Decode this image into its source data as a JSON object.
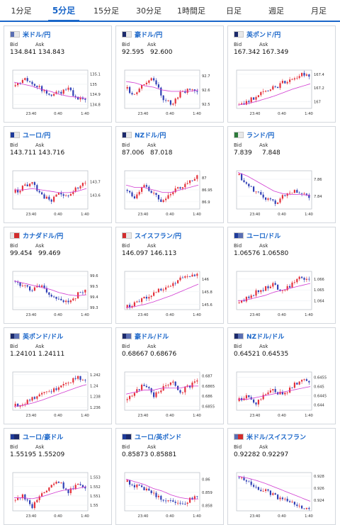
{
  "tabs": [
    {
      "label": "1分足",
      "active": false
    },
    {
      "label": "5分足",
      "active": true
    },
    {
      "label": "15分足",
      "active": false
    },
    {
      "label": "30分足",
      "active": false
    },
    {
      "label": "1時間足",
      "active": false
    },
    {
      "label": "日足",
      "active": false
    },
    {
      "label": "週足",
      "active": false
    },
    {
      "label": "月足",
      "active": false
    }
  ],
  "labels": {
    "bid": "Bid",
    "ask": "Ask"
  },
  "colors": {
    "up": "#e4303a",
    "down": "#2f3fb5",
    "ma": "#d13bd1",
    "accent": "#1a66c9"
  },
  "x_ticks": [
    "23:40",
    "0:40",
    "1:40"
  ],
  "pairs": [
    {
      "name": "米ドル/円",
      "flags": [
        "#5a6fb3",
        "#e8e8e8"
      ],
      "bid": "134.841",
      "ask": "134.843",
      "yticks": [
        "135.1",
        "135",
        "134.9",
        "134.8"
      ],
      "ymin": 134.76,
      "ymax": 135.14,
      "trend": [
        134.98,
        135.06,
        135.02,
        134.95,
        134.88,
        134.92,
        134.95,
        134.86,
        134.84
      ],
      "ma": [
        135.02,
        135.0,
        134.98,
        134.95,
        134.93,
        134.9,
        134.88,
        134.87,
        134.86
      ]
    },
    {
      "name": "豪ドル/円",
      "flags": [
        "#1c2a6b",
        "#e8e8e8"
      ],
      "bid": "92.595",
      "ask": "92.600",
      "yticks": [
        "92.7",
        "92.6",
        "92.5"
      ],
      "ymin": 92.47,
      "ymax": 92.74,
      "trend": [
        92.61,
        92.57,
        92.65,
        92.68,
        92.55,
        92.5,
        92.58,
        92.6,
        92.6
      ],
      "ma": [
        92.66,
        92.65,
        92.63,
        92.62,
        92.6,
        92.59,
        92.59,
        92.59,
        92.6
      ]
    },
    {
      "name": "英ポンド/円",
      "flags": [
        "#1c2a6b",
        "#e8e8e8"
      ],
      "bid": "167.342",
      "ask": "167.349",
      "yticks": [
        "167.4",
        "167.2",
        "167"
      ],
      "ymin": 166.9,
      "ymax": 167.46,
      "trend": [
        166.95,
        167.0,
        167.08,
        167.15,
        167.2,
        167.28,
        167.32,
        167.4,
        167.35
      ],
      "ma": [
        166.95,
        166.97,
        167.0,
        167.04,
        167.08,
        167.13,
        167.18,
        167.22,
        167.26
      ]
    },
    {
      "name": "ユーロ/円",
      "flags": [
        "#1f3b9a",
        "#e8e8e8"
      ],
      "bid": "143.711",
      "ask": "143.716",
      "yticks": [
        "143.7",
        "143.6"
      ],
      "ymin": 143.5,
      "ymax": 143.78,
      "trend": [
        143.62,
        143.66,
        143.7,
        143.6,
        143.56,
        143.62,
        143.6,
        143.66,
        143.71
      ],
      "ma": [
        143.64,
        143.64,
        143.65,
        143.64,
        143.63,
        143.62,
        143.62,
        143.63,
        143.65
      ]
    },
    {
      "name": "NZドル/円",
      "flags": [
        "#1c2a6b",
        "#e8e8e8"
      ],
      "bid": "87.006",
      "ask": "87.018",
      "yticks": [
        "87",
        "86.95",
        "86.9"
      ],
      "ymin": 86.87,
      "ymax": 87.03,
      "trend": [
        86.95,
        86.92,
        86.97,
        86.93,
        86.9,
        86.94,
        86.96,
        86.99,
        87.01
      ],
      "ma": [
        86.97,
        86.96,
        86.96,
        86.95,
        86.94,
        86.94,
        86.95,
        86.96,
        86.97
      ]
    },
    {
      "name": "ランド/円",
      "flags": [
        "#2c7a3a",
        "#e8e8e8"
      ],
      "bid": "7.839",
      "ask": "7.848",
      "yticks": [
        "7.86",
        "7.84"
      ],
      "ymin": 7.825,
      "ymax": 7.87,
      "trend": [
        7.865,
        7.855,
        7.845,
        7.838,
        7.832,
        7.84,
        7.846,
        7.842,
        7.839
      ],
      "ma": [
        7.868,
        7.864,
        7.858,
        7.852,
        7.846,
        7.843,
        7.842,
        7.842,
        7.841
      ]
    },
    {
      "name": "カナダドル/円",
      "flags": [
        "#e8e8e8",
        "#d22d2d"
      ],
      "bid": "99.454",
      "ask": "99.469",
      "yticks": [
        "99.6",
        "99.5",
        "99.4",
        "99.3"
      ],
      "ymin": 99.28,
      "ymax": 99.64,
      "trend": [
        99.55,
        99.5,
        99.45,
        99.52,
        99.4,
        99.38,
        99.33,
        99.42,
        99.46
      ],
      "ma": [
        99.55,
        99.53,
        99.51,
        99.49,
        99.47,
        99.44,
        99.42,
        99.41,
        99.42
      ]
    },
    {
      "name": "スイスフラン/円",
      "flags": [
        "#d22d2d",
        "#e8e8e8"
      ],
      "bid": "146.097",
      "ask": "146.113",
      "yticks": [
        "146",
        "145.8",
        "145.6"
      ],
      "ymin": 145.52,
      "ymax": 146.12,
      "trend": [
        145.55,
        145.62,
        145.7,
        145.78,
        145.85,
        145.92,
        146.0,
        146.05,
        146.1
      ],
      "ma": [
        145.55,
        145.57,
        145.6,
        145.64,
        145.69,
        145.74,
        145.8,
        145.86,
        145.92
      ]
    },
    {
      "name": "ユーロ/ドル",
      "flags": [
        "#1f3b9a",
        "#5a6fb3"
      ],
      "bid": "1.06576",
      "ask": "1.06580",
      "yticks": [
        "1.066",
        "1.065",
        "1.064"
      ],
      "ymin": 1.0632,
      "ymax": 1.0667,
      "trend": [
        1.0638,
        1.0642,
        1.0648,
        1.0652,
        1.0655,
        1.0648,
        1.0656,
        1.0661,
        1.0658
      ],
      "ma": [
        1.064,
        1.0641,
        1.0643,
        1.0645,
        1.0648,
        1.065,
        1.0652,
        1.0654,
        1.0656
      ]
    },
    {
      "name": "英ポンド/ドル",
      "flags": [
        "#1c2a6b",
        "#5a6fb3"
      ],
      "bid": "1.24101",
      "ask": "1.24111",
      "yticks": [
        "1.242",
        "1.24",
        "1.238",
        "1.236"
      ],
      "ymin": 1.2355,
      "ymax": 1.2425,
      "trend": [
        1.2362,
        1.2368,
        1.2375,
        1.2382,
        1.239,
        1.2398,
        1.2405,
        1.2415,
        1.241
      ],
      "ma": [
        1.2362,
        1.2364,
        1.2368,
        1.2373,
        1.2379,
        1.2385,
        1.2391,
        1.2397,
        1.2402
      ]
    },
    {
      "name": "豪ドル/ドル",
      "flags": [
        "#1c2a6b",
        "#5a6fb3"
      ],
      "bid": "0.68667",
      "ask": "0.68676",
      "yticks": [
        "0.687",
        "0.6865",
        "0.686",
        "0.6855"
      ],
      "ymin": 0.6853,
      "ymax": 0.6872,
      "trend": [
        0.6858,
        0.6862,
        0.6866,
        0.686,
        0.6864,
        0.6868,
        0.6862,
        0.6865,
        0.6867
      ],
      "ma": [
        0.6861,
        0.6862,
        0.6863,
        0.6863,
        0.6864,
        0.6864,
        0.6864,
        0.6865,
        0.6865
      ]
    },
    {
      "name": "NZドル/ドル",
      "flags": [
        "#1c2a6b",
        "#5a6fb3"
      ],
      "bid": "0.64521",
      "ask": "0.64535",
      "yticks": [
        "0.6455",
        "0.645",
        "0.6445",
        "0.644"
      ],
      "ymin": 0.6437,
      "ymax": 0.6458,
      "trend": [
        0.6442,
        0.6445,
        0.6441,
        0.6446,
        0.6448,
        0.6445,
        0.645,
        0.6454,
        0.6452
      ],
      "ma": [
        0.6443,
        0.6443,
        0.6444,
        0.6445,
        0.6446,
        0.6447,
        0.6448,
        0.6449,
        0.645
      ]
    },
    {
      "name": "ユーロ/豪ドル",
      "flags": [
        "#1f3b9a",
        "#1c2a6b"
      ],
      "bid": "1.55195",
      "ask": "1.55209",
      "yticks": [
        "1.553",
        "1.552",
        "1.551",
        "1.55"
      ],
      "ymin": 1.5494,
      "ymax": 1.5535,
      "trend": [
        1.5505,
        1.551,
        1.5498,
        1.5512,
        1.552,
        1.5525,
        1.5515,
        1.5522,
        1.552
      ],
      "ma": [
        1.5508,
        1.5508,
        1.5507,
        1.5509,
        1.5512,
        1.5515,
        1.5517,
        1.5518,
        1.552
      ]
    },
    {
      "name": "ユーロ/英ポンド",
      "flags": [
        "#1f3b9a",
        "#1c2a6b"
      ],
      "bid": "0.85873",
      "ask": "0.85881",
      "yticks": [
        "0.86",
        "0.859",
        "0.858"
      ],
      "ymin": 0.8576,
      "ymax": 0.8605,
      "trend": [
        0.8598,
        0.8595,
        0.8592,
        0.8589,
        0.8585,
        0.8582,
        0.858,
        0.8584,
        0.8587
      ],
      "ma": [
        0.86,
        0.8598,
        0.8596,
        0.8593,
        0.8591,
        0.8588,
        0.8586,
        0.8585,
        0.8585
      ]
    },
    {
      "name": "米ドル/スイスフラン",
      "flags": [
        "#5a6fb3",
        "#d22d2d"
      ],
      "bid": "0.92282",
      "ask": "0.92297",
      "yticks": [
        "0.928",
        "0.926",
        "0.924"
      ],
      "ymin": 0.9222,
      "ymax": 0.9286,
      "trend": [
        0.9278,
        0.9272,
        0.9262,
        0.9255,
        0.9248,
        0.924,
        0.9235,
        0.9228,
        0.9226
      ],
      "ma": [
        0.928,
        0.9277,
        0.9273,
        0.9268,
        0.9262,
        0.9256,
        0.925,
        0.9244,
        0.9238
      ]
    }
  ]
}
